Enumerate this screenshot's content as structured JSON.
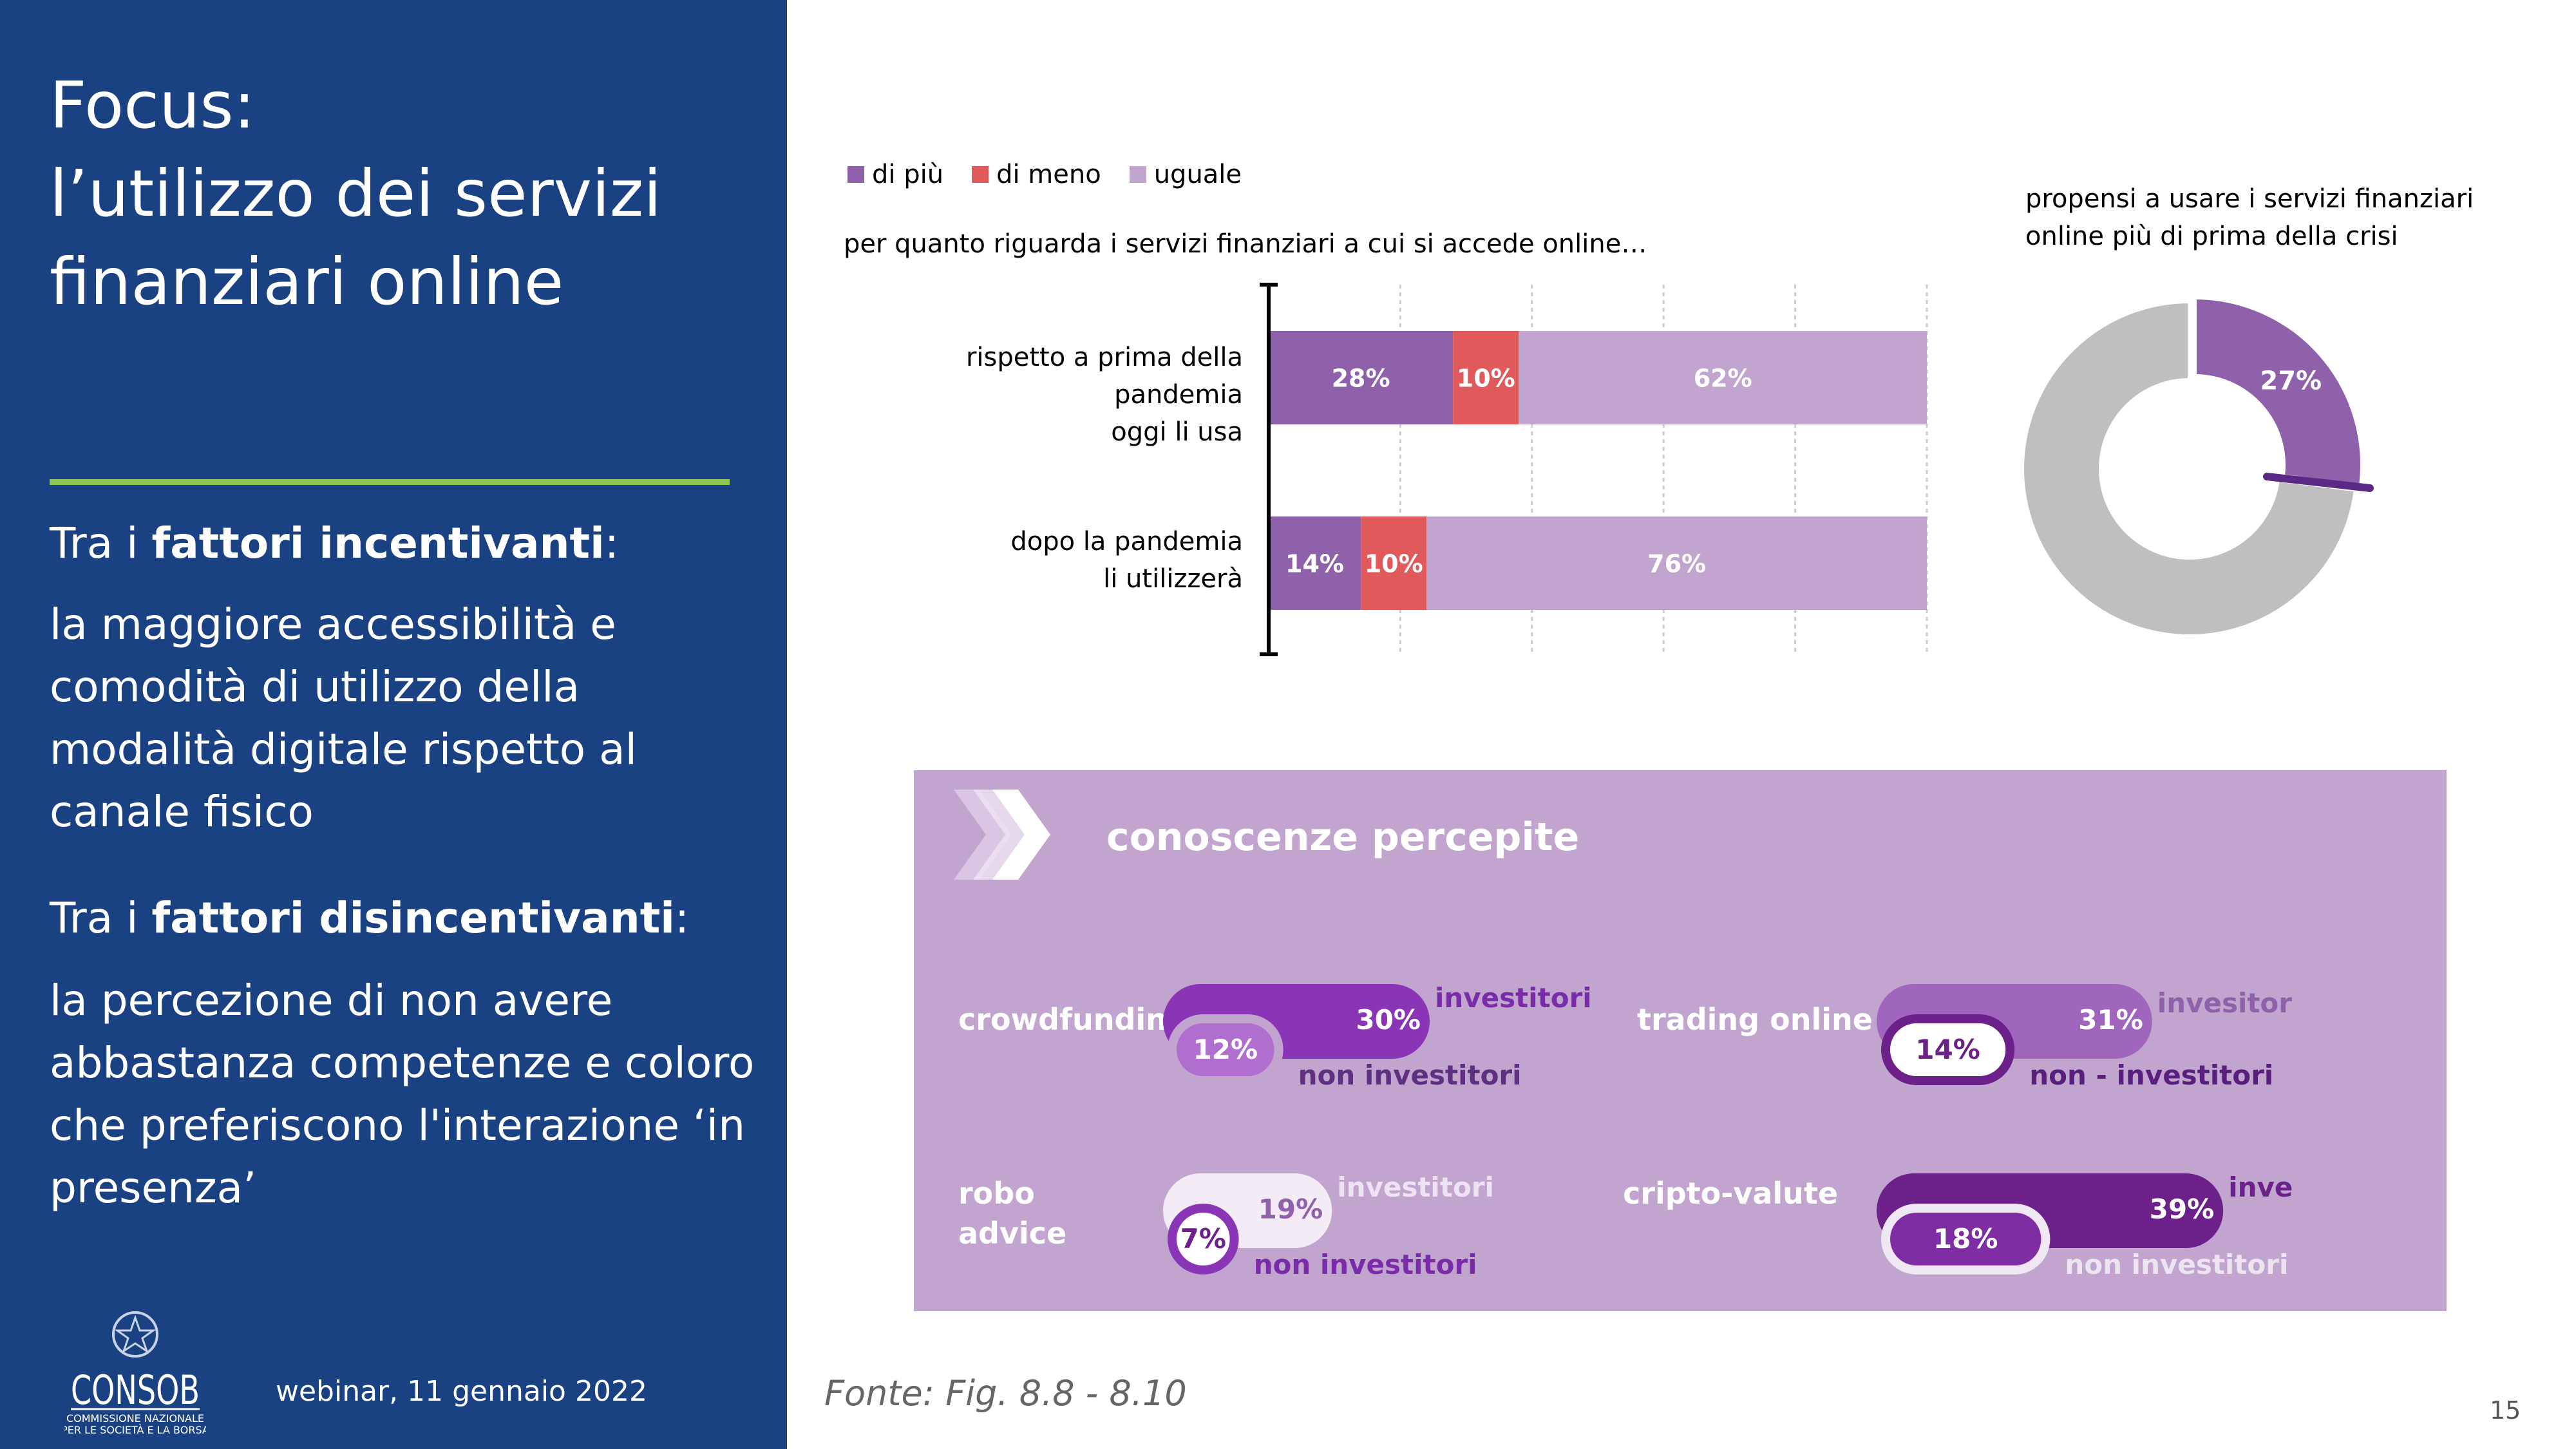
{
  "slide": {
    "title_lines": [
      "Focus:",
      "l’utilizzo dei servizi",
      "finanziari online"
    ],
    "incentivanti_prefix": "Tra i ",
    "incentivanti_bold": "fattori incentivanti",
    "incentivanti_suffix": ":",
    "incentivanti_text": "la maggiore accessibilità e comodità di utilizzo della modalità digitale rispetto al canale fisico",
    "disincentivanti_prefix": "Tra i ",
    "disincentivanti_bold": "fattori disincentivanti",
    "disincentivanti_suffix": ":",
    "disincentivanti_text": "la percezione di non avere abbastanza competenze e coloro che preferiscono l'interazione ‘in presenza’",
    "footer": "webinar, 11 gennaio 2022",
    "logo_text": "CONSOB",
    "logo_subtext": [
      "COMMISSIONE NAZIONALE",
      "PER LE SOCIETÀ E LA BORSA"
    ],
    "source": "Fonte:  Fig. 8.8 - 8.10",
    "page_number": "15"
  },
  "colors": {
    "blue": "#1a4182",
    "green_rule": "#8ec652",
    "di_piu": "#8e61aa",
    "di_meno": "#e05a5b",
    "uguale": "#c2a5cf",
    "donut_grey": "#bfbfbf",
    "panel_bg": "#c2a5cf"
  },
  "chart_data": [
    {
      "type": "bar",
      "subtype": "stacked-horizontal",
      "subtitle": "per quanto riguarda i servizi finanziari a cui si accede online…",
      "legend": [
        "di più",
        "di meno",
        "uguale"
      ],
      "legend_placement": "top-left",
      "categories": [
        "rispetto a prima della pandemia oggi li usa",
        "dopo la pandemia li utilizzerà"
      ],
      "category_lines": [
        [
          "rispetto a prima della pandemia",
          "oggi li usa"
        ],
        [
          "dopo la pandemia",
          "li utilizzerà"
        ]
      ],
      "series": [
        {
          "name": "di più",
          "values": [
            28,
            14
          ],
          "labels": [
            "28%",
            "14%"
          ]
        },
        {
          "name": "di meno",
          "values": [
            10,
            10
          ],
          "labels": [
            "10%",
            "10%"
          ]
        },
        {
          "name": "uguale",
          "values": [
            62,
            76
          ],
          "labels": [
            "62%",
            "76%"
          ]
        }
      ],
      "xlim": [
        0,
        100
      ],
      "grid": true
    },
    {
      "type": "pie",
      "subtype": "donut",
      "title_lines": [
        "propensi a usare i servizi finanziari",
        "online più di prima della crisi"
      ],
      "values": [
        27,
        73
      ],
      "labels": [
        "27%",
        ""
      ]
    },
    {
      "type": "bar",
      "subtype": "pill-comparison",
      "title": "conoscenze percepite",
      "items": [
        {
          "label_lines": [
            "crowdfunding"
          ],
          "investitori": 30,
          "non_investitori": 12,
          "inv_label": "30%",
          "non_label": "12%",
          "inv_name": "investitori",
          "non_name": "non investitori"
        },
        {
          "label_lines": [
            "trading online"
          ],
          "investitori": 31,
          "non_investitori": 14,
          "inv_label": "31%",
          "non_label": "14%",
          "inv_name": "invesitori",
          "non_name": "non - investitori"
        },
        {
          "label_lines": [
            "robo",
            "advice"
          ],
          "investitori": 19,
          "non_investitori": 7,
          "inv_label": "19%",
          "non_label": "7%",
          "inv_name": "investitori",
          "non_name": "non investitori"
        },
        {
          "label_lines": [
            "cripto-valute"
          ],
          "investitori": 39,
          "non_investitori": 18,
          "inv_label": "39%",
          "non_label": "18%",
          "inv_name": "investitori",
          "non_name": "non investitori"
        }
      ]
    }
  ]
}
